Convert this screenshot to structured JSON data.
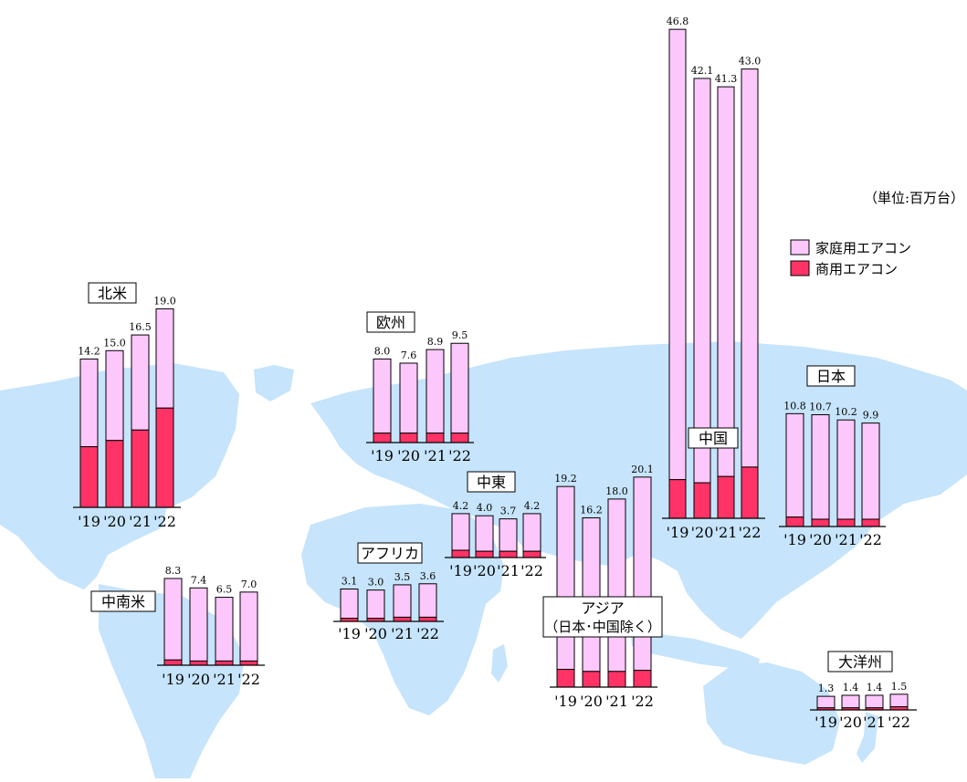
{
  "unit_label": "（単位:百万台）",
  "colors": {
    "residential": "#fcc8fc",
    "commercial": "#ff3366",
    "map": "#c6e4fb"
  },
  "legend": [
    {
      "key": "residential",
      "label": "家庭用エアコン"
    },
    {
      "key": "commercial",
      "label": "商用エアコン"
    }
  ],
  "chart_data": [
    {
      "type": "bar",
      "stacked": true,
      "region": "北米",
      "categories": [
        "'19",
        "'20",
        "'21",
        "'22"
      ],
      "totals": [
        14.2,
        15.0,
        16.5,
        19.0
      ],
      "series": [
        {
          "name": "商用エアコン",
          "values": [
            5.8,
            6.4,
            7.4,
            9.5
          ]
        },
        {
          "name": "家庭用エアコン",
          "values": [
            8.4,
            8.6,
            9.1,
            9.5
          ]
        }
      ]
    },
    {
      "type": "bar",
      "stacked": true,
      "region": "中南米",
      "categories": [
        "'19",
        "'20",
        "'21",
        "'22"
      ],
      "totals": [
        8.3,
        7.4,
        6.5,
        7.0
      ],
      "series": [
        {
          "name": "商用エアコン",
          "values": [
            0.5,
            0.4,
            0.4,
            0.4
          ]
        },
        {
          "name": "家庭用エアコン",
          "values": [
            7.8,
            7.0,
            6.1,
            6.6
          ]
        }
      ]
    },
    {
      "type": "bar",
      "stacked": true,
      "region": "欧州",
      "categories": [
        "'19",
        "'20",
        "'21",
        "'22"
      ],
      "totals": [
        8.0,
        7.6,
        8.9,
        9.5
      ],
      "series": [
        {
          "name": "商用エアコン",
          "values": [
            0.9,
            0.9,
            0.9,
            0.9
          ]
        },
        {
          "name": "家庭用エアコン",
          "values": [
            7.1,
            6.7,
            8.0,
            8.6
          ]
        }
      ]
    },
    {
      "type": "bar",
      "stacked": true,
      "region": "中東",
      "categories": [
        "'19",
        "'20",
        "'21",
        "'22"
      ],
      "totals": [
        4.2,
        4.0,
        3.7,
        4.2
      ],
      "series": [
        {
          "name": "商用エアコン",
          "values": [
            0.7,
            0.6,
            0.6,
            0.6
          ]
        },
        {
          "name": "家庭用エアコン",
          "values": [
            3.5,
            3.4,
            3.1,
            3.6
          ]
        }
      ]
    },
    {
      "type": "bar",
      "stacked": true,
      "region": "アフリカ",
      "categories": [
        "'19",
        "'20",
        "'21",
        "'22"
      ],
      "totals": [
        3.1,
        3.0,
        3.5,
        3.6
      ],
      "series": [
        {
          "name": "商用エアコン",
          "values": [
            0.3,
            0.3,
            0.4,
            0.4
          ]
        },
        {
          "name": "家庭用エアコン",
          "values": [
            2.8,
            2.7,
            3.1,
            3.2
          ]
        }
      ]
    },
    {
      "type": "bar",
      "stacked": true,
      "region": "アジア",
      "region_sub": "（日本･中国除く）",
      "categories": [
        "'19",
        "'20",
        "'21",
        "'22"
      ],
      "totals": [
        19.2,
        16.2,
        18.0,
        20.1
      ],
      "series": [
        {
          "name": "商用エアコン",
          "values": [
            1.7,
            1.5,
            1.5,
            1.6
          ]
        },
        {
          "name": "家庭用エアコン",
          "values": [
            17.5,
            14.7,
            16.5,
            18.5
          ]
        }
      ]
    },
    {
      "type": "bar",
      "stacked": true,
      "region": "中国",
      "categories": [
        "'19",
        "'20",
        "'21",
        "'22"
      ],
      "totals": [
        46.8,
        42.1,
        41.3,
        43.0
      ],
      "series": [
        {
          "name": "商用エアコン",
          "values": [
            3.7,
            3.4,
            4.0,
            4.9
          ]
        },
        {
          "name": "家庭用エアコン",
          "values": [
            43.1,
            38.7,
            37.3,
            38.1
          ]
        }
      ]
    },
    {
      "type": "bar",
      "stacked": true,
      "region": "日本",
      "categories": [
        "'19",
        "'20",
        "'21",
        "'22"
      ],
      "totals": [
        10.8,
        10.7,
        10.2,
        9.9
      ],
      "series": [
        {
          "name": "商用エアコン",
          "values": [
            0.9,
            0.7,
            0.7,
            0.7
          ]
        },
        {
          "name": "家庭用エアコン",
          "values": [
            9.9,
            10.0,
            9.5,
            9.2
          ]
        }
      ]
    },
    {
      "type": "bar",
      "stacked": true,
      "region": "大洋州",
      "categories": [
        "'19",
        "'20",
        "'21",
        "'22"
      ],
      "totals": [
        1.3,
        1.4,
        1.4,
        1.5
      ],
      "series": [
        {
          "name": "商用エアコン",
          "values": [
            0.2,
            0.2,
            0.2,
            0.3
          ]
        },
        {
          "name": "家庭用エアコン",
          "values": [
            1.1,
            1.2,
            1.2,
            1.2
          ]
        }
      ]
    }
  ]
}
